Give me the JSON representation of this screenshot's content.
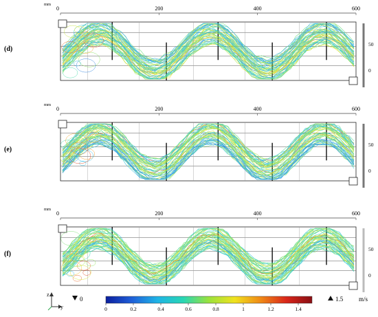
{
  "axis": {
    "unit": "mm",
    "x_ticks": [
      "0",
      "200",
      "400",
      "600"
    ],
    "z_ticks": [
      "50",
      "0"
    ]
  },
  "panels": [
    {
      "label": "(d)",
      "inlet": "top-left",
      "outlet": "bottom-right"
    },
    {
      "label": "(e)",
      "inlet": "top-left",
      "outlet": "bottom-right"
    },
    {
      "label": "(f)",
      "inlet": "top-left",
      "outlet": "bottom-right"
    }
  ],
  "colorbar": {
    "min_label": "0",
    "max_label": "1.5",
    "ticks": [
      "0",
      "0.2",
      "0.4",
      "0.6",
      "0.8",
      "1",
      "1.2",
      "1.4"
    ],
    "unit": "m/s",
    "colors": [
      "#0b1f9e",
      "#1f5fd8",
      "#1fb4e6",
      "#28d6b4",
      "#9be23c",
      "#f0e21e",
      "#f08a16",
      "#d9261a",
      "#8a0f14"
    ]
  },
  "triad": {
    "z_label": "z",
    "y_label": "y"
  }
}
